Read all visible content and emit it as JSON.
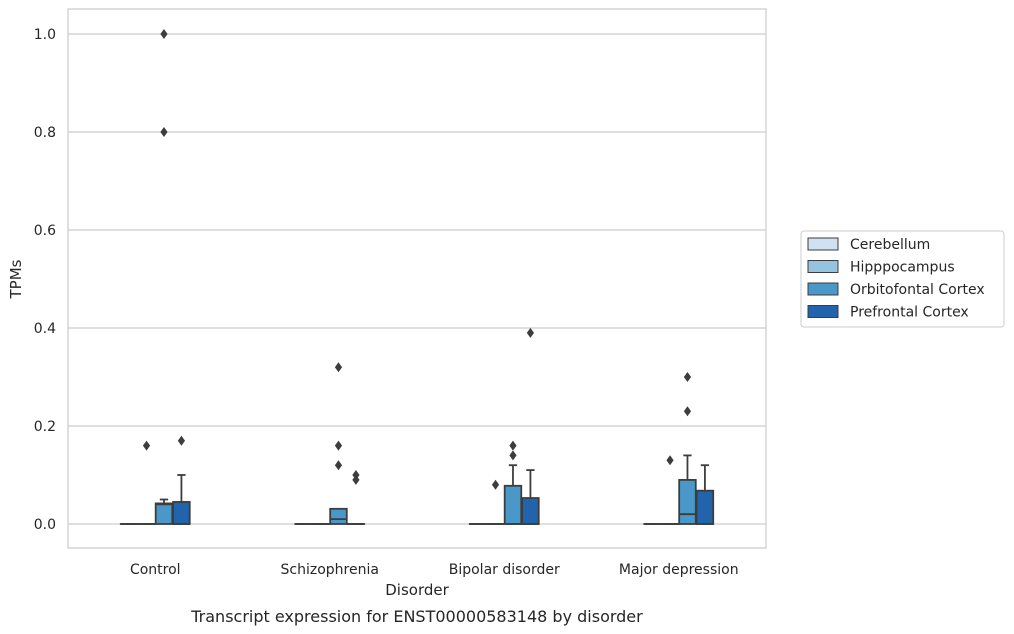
{
  "chart_data": {
    "type": "box",
    "caption": "Transcript expression for ENST00000583148 by disorder",
    "xlabel": "Disorder",
    "ylabel": "TPMs",
    "ylim": [
      -0.048,
      1.05
    ],
    "yticks": [
      0.0,
      0.2,
      0.4,
      0.6,
      0.8,
      1.0
    ],
    "ytick_labels": [
      "0.0",
      "0.2",
      "0.4",
      "0.6",
      "0.8",
      "1.0"
    ],
    "grid": "horizontal",
    "legend_position": "right",
    "categories": [
      "Control",
      "Schizophrenia",
      "Bipolar disorder",
      "Major depression"
    ],
    "series": [
      {
        "name": "Cerebellum",
        "color": "#d0e1f2",
        "boxes": [
          {
            "q1": 0,
            "median": 0,
            "q3": 0,
            "whisker_low": 0,
            "whisker_high": 0,
            "outliers": []
          },
          {
            "q1": 0,
            "median": 0,
            "q3": 0,
            "whisker_low": 0,
            "whisker_high": 0,
            "outliers": []
          },
          {
            "q1": 0,
            "median": 0,
            "q3": 0,
            "whisker_low": 0,
            "whisker_high": 0,
            "outliers": []
          },
          {
            "q1": 0,
            "median": 0,
            "q3": 0,
            "whisker_low": 0,
            "whisker_high": 0,
            "outliers": []
          }
        ]
      },
      {
        "name": "Hipppocampus",
        "color": "#94c4df",
        "boxes": [
          {
            "q1": 0,
            "median": 0,
            "q3": 0,
            "whisker_low": 0,
            "whisker_high": 0,
            "outliers": [
              0.16
            ]
          },
          {
            "q1": 0,
            "median": 0,
            "q3": 0,
            "whisker_low": 0,
            "whisker_high": 0,
            "outliers": []
          },
          {
            "q1": 0,
            "median": 0,
            "q3": 0,
            "whisker_low": 0,
            "whisker_high": 0,
            "outliers": [
              0.08
            ]
          },
          {
            "q1": 0,
            "median": 0,
            "q3": 0,
            "whisker_low": 0,
            "whisker_high": 0,
            "outliers": [
              0.13
            ]
          }
        ]
      },
      {
        "name": "Orbitofontal Cortex",
        "color": "#4a98c9",
        "boxes": [
          {
            "q1": 0,
            "median": 0.04,
            "q3": 0.042,
            "whisker_low": 0,
            "whisker_high": 0.05,
            "outliers": [
              1.0,
              0.8
            ]
          },
          {
            "q1": 0,
            "median": 0.01,
            "q3": 0.031,
            "whisker_low": 0,
            "whisker_high": 0.031,
            "outliers": [
              0.32,
              0.16,
              0.12
            ]
          },
          {
            "q1": 0,
            "median": 0,
            "q3": 0.078,
            "whisker_low": 0,
            "whisker_high": 0.12,
            "outliers": [
              0.16,
              0.14
            ]
          },
          {
            "q1": 0,
            "median": 0.02,
            "q3": 0.09,
            "whisker_low": 0,
            "whisker_high": 0.14,
            "outliers": [
              0.3,
              0.23
            ]
          }
        ]
      },
      {
        "name": "Prefrontal Cortex",
        "color": "#2164ab",
        "boxes": [
          {
            "q1": 0,
            "median": 0,
            "q3": 0.045,
            "whisker_low": 0,
            "whisker_high": 0.1,
            "outliers": [
              0.17
            ]
          },
          {
            "q1": 0,
            "median": 0,
            "q3": 0,
            "whisker_low": 0,
            "whisker_high": 0,
            "outliers": [
              0.1,
              0.09
            ]
          },
          {
            "q1": 0,
            "median": 0,
            "q3": 0.053,
            "whisker_low": 0,
            "whisker_high": 0.11,
            "outliers": [
              0.39
            ]
          },
          {
            "q1": 0,
            "median": 0,
            "q3": 0.068,
            "whisker_low": 0,
            "whisker_high": 0.12,
            "outliers": []
          }
        ]
      }
    ]
  }
}
